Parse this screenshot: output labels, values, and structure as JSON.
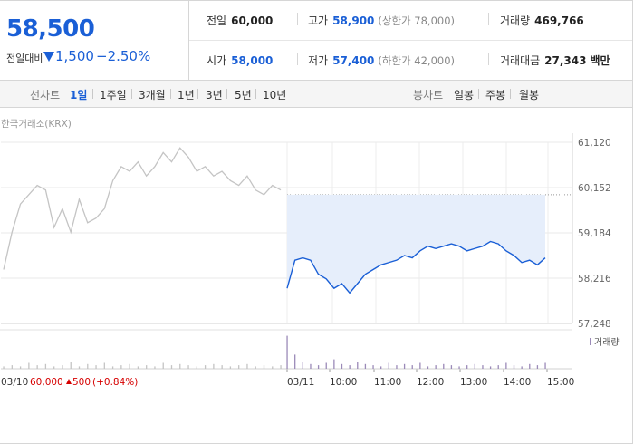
{
  "quote": {
    "price": "58,500",
    "change_label": "전일대비",
    "change_value": "1,500",
    "change_percent": "−2.50%",
    "prev_close_label": "전일",
    "prev_close": "60,000",
    "high_label": "고가",
    "high": "58,900",
    "upper_limit": "(상한가 78,000)",
    "volume_label": "거래량",
    "volume": "469,766",
    "open_label": "시가",
    "open": "58,000",
    "low_label": "저가",
    "low": "57,400",
    "lower_limit": "(하한가 42,000)",
    "amount_label": "거래대금",
    "amount": "27,343",
    "amount_unit": "백만"
  },
  "tabs": {
    "line_label": "선차트",
    "line_items": [
      "1일",
      "1주일",
      "3개월",
      "1년",
      "3년",
      "5년",
      "10년"
    ],
    "candle_label": "봉차트",
    "candle_items": [
      "일봉",
      "주봉",
      "월봉"
    ]
  },
  "colors": {
    "accent_blue": "#1a5fd6",
    "up_red": "#d60000",
    "fill_blue": "#e6eefb",
    "prev_gray": "#c4c4c4",
    "volume_purple": "#9b8ab8"
  },
  "chart_data": {
    "type": "line",
    "source_label": "한국거래소(KRX)",
    "y_ticks": [
      "61,120",
      "60,152",
      "59,184",
      "58,216",
      "57,248"
    ],
    "ylim": [
      57248,
      61120
    ],
    "reference_value": 60000,
    "x_tick_labels": [
      "03/10",
      "03/11",
      "10:00",
      "11:00",
      "12:00",
      "13:00",
      "14:00",
      "15:00"
    ],
    "prev_day_note": {
      "date": "03/10",
      "close": "60,000",
      "change": "500",
      "percent": "(+0.84%)"
    },
    "volume_legend": "거래량",
    "series": [
      {
        "x": [
          "03/10",
          "03/10",
          "03/10",
          "03/10",
          "03/10",
          "03/10",
          "03/10",
          "03/10",
          "03/10",
          "03/10",
          "03/10",
          "03/10",
          "03/10",
          "03/10",
          "03/10",
          "03/10",
          "03/10",
          "03/10",
          "03/10",
          "03/10",
          "03/10",
          "03/10",
          "03/10",
          "03/10",
          "03/10",
          "03/10",
          "03/10",
          "03/10",
          "03/10",
          "03/10",
          "03/10",
          "03/10",
          "03/10",
          "03/10"
        ],
        "values": [
          58400,
          59200,
          59800,
          60000,
          60200,
          60100,
          59300,
          59700,
          59200,
          59900,
          59400,
          59500,
          59700,
          60300,
          60600,
          60500,
          60700,
          60400,
          60600,
          60900,
          60700,
          61000,
          60800,
          60500,
          60600,
          60400,
          60500,
          60300,
          60200,
          60400,
          60100,
          60000,
          60200,
          60100
        ]
      },
      {
        "x": [
          "09:00",
          "09:10",
          "09:20",
          "09:30",
          "09:40",
          "09:50",
          "10:00",
          "10:10",
          "10:20",
          "10:30",
          "10:40",
          "10:50",
          "11:00",
          "11:10",
          "11:20",
          "11:30",
          "11:40",
          "11:50",
          "12:00",
          "12:10",
          "12:20",
          "12:30",
          "12:40",
          "12:50",
          "13:00",
          "13:10",
          "13:20",
          "13:30",
          "13:40",
          "13:50",
          "14:00",
          "14:10",
          "14:20",
          "14:30"
        ],
        "values": [
          58000,
          58600,
          58650,
          58600,
          58300,
          58200,
          58000,
          58100,
          57900,
          58100,
          58300,
          58400,
          58500,
          58550,
          58600,
          58700,
          58650,
          58800,
          58900,
          58850,
          58900,
          58950,
          58900,
          58800,
          58850,
          58900,
          59000,
          58950,
          58800,
          58700,
          58550,
          58600,
          58500,
          58650
        ]
      }
    ],
    "volume": [
      [
        2,
        3,
        2,
        5,
        3,
        4,
        2,
        3,
        6,
        2,
        4,
        3,
        5,
        2,
        3,
        4,
        2,
        3,
        2,
        5,
        3,
        4,
        3,
        2,
        3,
        4,
        3,
        2,
        3,
        4,
        2,
        3,
        2,
        3
      ],
      [
        28,
        12,
        6,
        4,
        3,
        5,
        8,
        4,
        3,
        6,
        4,
        3,
        2,
        5,
        3,
        4,
        3,
        5,
        2,
        3,
        4,
        3,
        2,
        3,
        4,
        3,
        2,
        3,
        5,
        3,
        2,
        4,
        3,
        5
      ]
    ]
  }
}
